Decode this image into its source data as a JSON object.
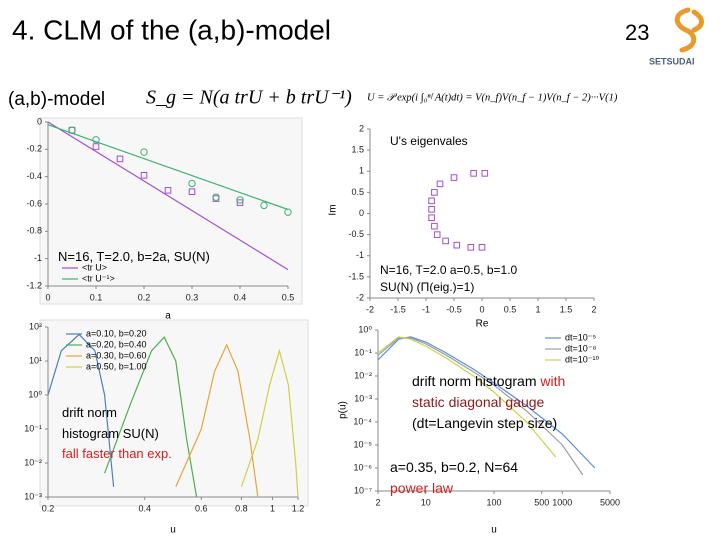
{
  "header": {
    "title": "4. CLM of the (a,b)-model",
    "page": "23",
    "logo": "SETSUDAI"
  },
  "model_label": "(a,b)-model",
  "formula_action": "S_g = N(a trU + b trU⁻¹)",
  "formula_u": "U = 𝒫 exp(i ∫₀ⁿᶠ A(t)dt) = V(n_f)V(n_f − 1)V(n_f − 2)···V(1)",
  "chart_data": [
    {
      "type": "scatter",
      "xlabel": "a",
      "xlim": [
        0,
        0.5
      ],
      "ylim": [
        -1.2,
        0
      ],
      "xticks": [
        0,
        0.1,
        0.2,
        0.3,
        0.4,
        0.5
      ],
      "yticks": [
        0,
        -0.2,
        -0.4,
        -0.6,
        -0.8,
        -1,
        -1.2
      ],
      "series": [
        {
          "name": "<tr U>",
          "color": "#a050d0",
          "marker": "square",
          "x": [
            0.05,
            0.1,
            0.15,
            0.2,
            0.25,
            0.3,
            0.35,
            0.4
          ],
          "values": [
            -0.06,
            -0.18,
            -0.27,
            -0.39,
            -0.5,
            -0.51,
            -0.56,
            -0.59
          ]
        },
        {
          "name": "<tr U⁻¹>",
          "color": "#3cb371",
          "marker": "circle",
          "x": [
            0.05,
            0.1,
            0.2,
            0.3,
            0.35,
            0.4,
            0.45,
            0.5
          ],
          "values": [
            -0.06,
            -0.13,
            -0.22,
            -0.45,
            -0.55,
            -0.57,
            -0.61,
            -0.66
          ]
        },
        {
          "color": "#a050d0",
          "marker": "line",
          "x": [
            0,
            0.5
          ],
          "values": [
            0,
            -1.08
          ]
        },
        {
          "color": "#3cb371",
          "marker": "line",
          "x": [
            0,
            0.5
          ],
          "values": [
            -0.02,
            -0.64
          ]
        }
      ],
      "annotations": [
        [
          {
            "text": "N=16, T=2.0, b=2a, SU(N)",
            "color": "#000000"
          }
        ]
      ]
    },
    {
      "type": "scatter",
      "xlabel": "Re",
      "ylabel": "Im",
      "xlim": [
        -2,
        2
      ],
      "ylim": [
        -2,
        2
      ],
      "xticks": [
        -2,
        -1.5,
        -1,
        -0.5,
        0,
        0.5,
        1,
        1.5,
        2
      ],
      "yticks": [
        2,
        1.5,
        1,
        0.5,
        0,
        -0.5,
        -1,
        -1.5,
        -2
      ],
      "series": [
        {
          "color": "#a050d0",
          "marker": "square",
          "x": [
            -0.15,
            0.05,
            -0.5,
            -0.75,
            -0.85,
            -0.9,
            -0.9,
            -0.9,
            -0.85,
            -0.8,
            -0.65,
            -0.45,
            -0.2,
            0
          ],
          "values": [
            0.95,
            0.95,
            0.85,
            0.7,
            0.5,
            0.3,
            0.1,
            -0.1,
            -0.3,
            -0.5,
            -0.65,
            -0.75,
            -0.8,
            -0.8
          ]
        }
      ],
      "annotations": [
        [
          {
            "text": "U's eigenvales",
            "color": "#000000"
          }
        ],
        [
          {
            "text": "N=16, T=2.0 a=0.5, b=1.0",
            "color": "#000000"
          }
        ],
        [
          {
            "text": "SU(N)   (Π(eig.)=1)",
            "color": "#000000"
          }
        ]
      ]
    },
    {
      "type": "line",
      "xlabel": "u",
      "xscale": "log",
      "yscale": "log",
      "xlim": [
        0.2,
        1.2
      ],
      "ylim": [
        0.001,
        100
      ],
      "xticks": [
        0.2,
        0.4,
        0.6,
        0.8,
        1,
        1.2
      ],
      "yticks": [
        {
          "value": 100,
          "label": "10²"
        },
        {
          "value": 10,
          "label": "10¹"
        },
        {
          "value": 1,
          "label": "10⁰"
        },
        {
          "value": 0.1,
          "label": "10⁻¹"
        },
        {
          "value": 0.01,
          "label": "10⁻²"
        },
        {
          "value": 0.001,
          "label": "10⁻³"
        }
      ],
      "series": [
        {
          "name": "a=0.10, b=0.20",
          "color": "#4a7fc1",
          "marker": "line",
          "x": [
            0.2,
            0.22,
            0.25,
            0.28,
            0.3,
            0.32
          ],
          "values": [
            1,
            20,
            60,
            20,
            1,
            0.002
          ]
        },
        {
          "name": "a=0.20, b=0.40",
          "color": "#4caf50",
          "marker": "line",
          "x": [
            0.3,
            0.36,
            0.42,
            0.46,
            0.5,
            0.54,
            0.58
          ],
          "values": [
            0.005,
            0.5,
            20,
            50,
            10,
            0.05,
            0.001
          ]
        },
        {
          "name": "a=0.30, b=0.60",
          "color": "#e8a33d",
          "marker": "line",
          "x": [
            0.5,
            0.6,
            0.66,
            0.72,
            0.78,
            0.85,
            0.9
          ],
          "values": [
            0.002,
            0.1,
            5,
            30,
            5,
            0.05,
            0.001
          ]
        },
        {
          "name": "a=0.50, b=1.00",
          "color": "#d0d040",
          "marker": "line",
          "x": [
            0.8,
            0.9,
            0.98,
            1.05,
            1.12,
            1.18,
            1.2
          ],
          "values": [
            0.002,
            0.05,
            2,
            20,
            2,
            0.01,
            0.001
          ]
        }
      ],
      "annotations": [
        [
          {
            "text": "drift norm",
            "color": "#000000"
          }
        ],
        [
          {
            "text": "histogram SU(N)",
            "color": "#000000"
          }
        ],
        [
          {
            "text": "fall faster than exp.",
            "color": "#d02020"
          }
        ]
      ]
    },
    {
      "type": "line",
      "xlabel": "u",
      "ylabel": "p(u)",
      "xscale": "log",
      "yscale": "log",
      "xlim": [
        2,
        5000
      ],
      "ylim": [
        1e-07,
        1
      ],
      "xticks": [
        2,
        10,
        100,
        500,
        1000,
        5000
      ],
      "yticks": [
        {
          "value": 1,
          "label": "10⁰"
        },
        {
          "value": 0.1,
          "label": "10⁻¹"
        },
        {
          "value": 0.01,
          "label": "10⁻²"
        },
        {
          "value": 0.001,
          "label": "10⁻³"
        },
        {
          "value": 0.0001,
          "label": "10⁻⁴"
        },
        {
          "value": 1e-05,
          "label": "10⁻⁵"
        },
        {
          "value": 1e-06,
          "label": "10⁻⁶"
        },
        {
          "value": 1e-07,
          "label": "10⁻⁷"
        }
      ],
      "series": [
        {
          "name": "dt=10⁻⁵",
          "color": "#5b8fd6",
          "marker": "line",
          "x": [
            2,
            4,
            6,
            10,
            20,
            50,
            100,
            300,
            1000,
            3000
          ],
          "values": [
            0.05,
            0.4,
            0.5,
            0.3,
            0.1,
            0.02,
            0.005,
            0.0005,
            3e-05,
            1e-06
          ]
        },
        {
          "name": "dt=10⁻⁸",
          "color": "#9aa0a6",
          "marker": "line",
          "x": [
            2,
            4,
            6,
            10,
            20,
            50,
            100,
            300,
            1000,
            2000
          ],
          "values": [
            0.08,
            0.45,
            0.45,
            0.25,
            0.08,
            0.015,
            0.004,
            0.0003,
            1e-05,
            5e-07
          ]
        },
        {
          "name": "dt=10⁻¹⁰",
          "color": "#c8d44a",
          "marker": "line",
          "x": [
            2,
            4,
            6,
            10,
            20,
            50,
            100,
            300,
            800
          ],
          "values": [
            0.1,
            0.5,
            0.4,
            0.2,
            0.06,
            0.01,
            0.002,
            0.0001,
            3e-06
          ]
        }
      ],
      "annotations": [
        [
          {
            "text": "drift norm histogram ",
            "color": "#000000"
          },
          {
            "text": "with",
            "color": "#d02020"
          }
        ],
        [
          {
            "text": "static diagonal gauge",
            "color": "#8b1a1a"
          }
        ],
        [
          {
            "text": "(dt=Langevin step size)",
            "color": "#000000"
          }
        ],
        [
          {
            "text": "a=0.35, b=0.2, N=64",
            "color": "#000000"
          }
        ],
        [
          {
            "text": "power law",
            "color": "#d02020"
          }
        ]
      ]
    }
  ]
}
